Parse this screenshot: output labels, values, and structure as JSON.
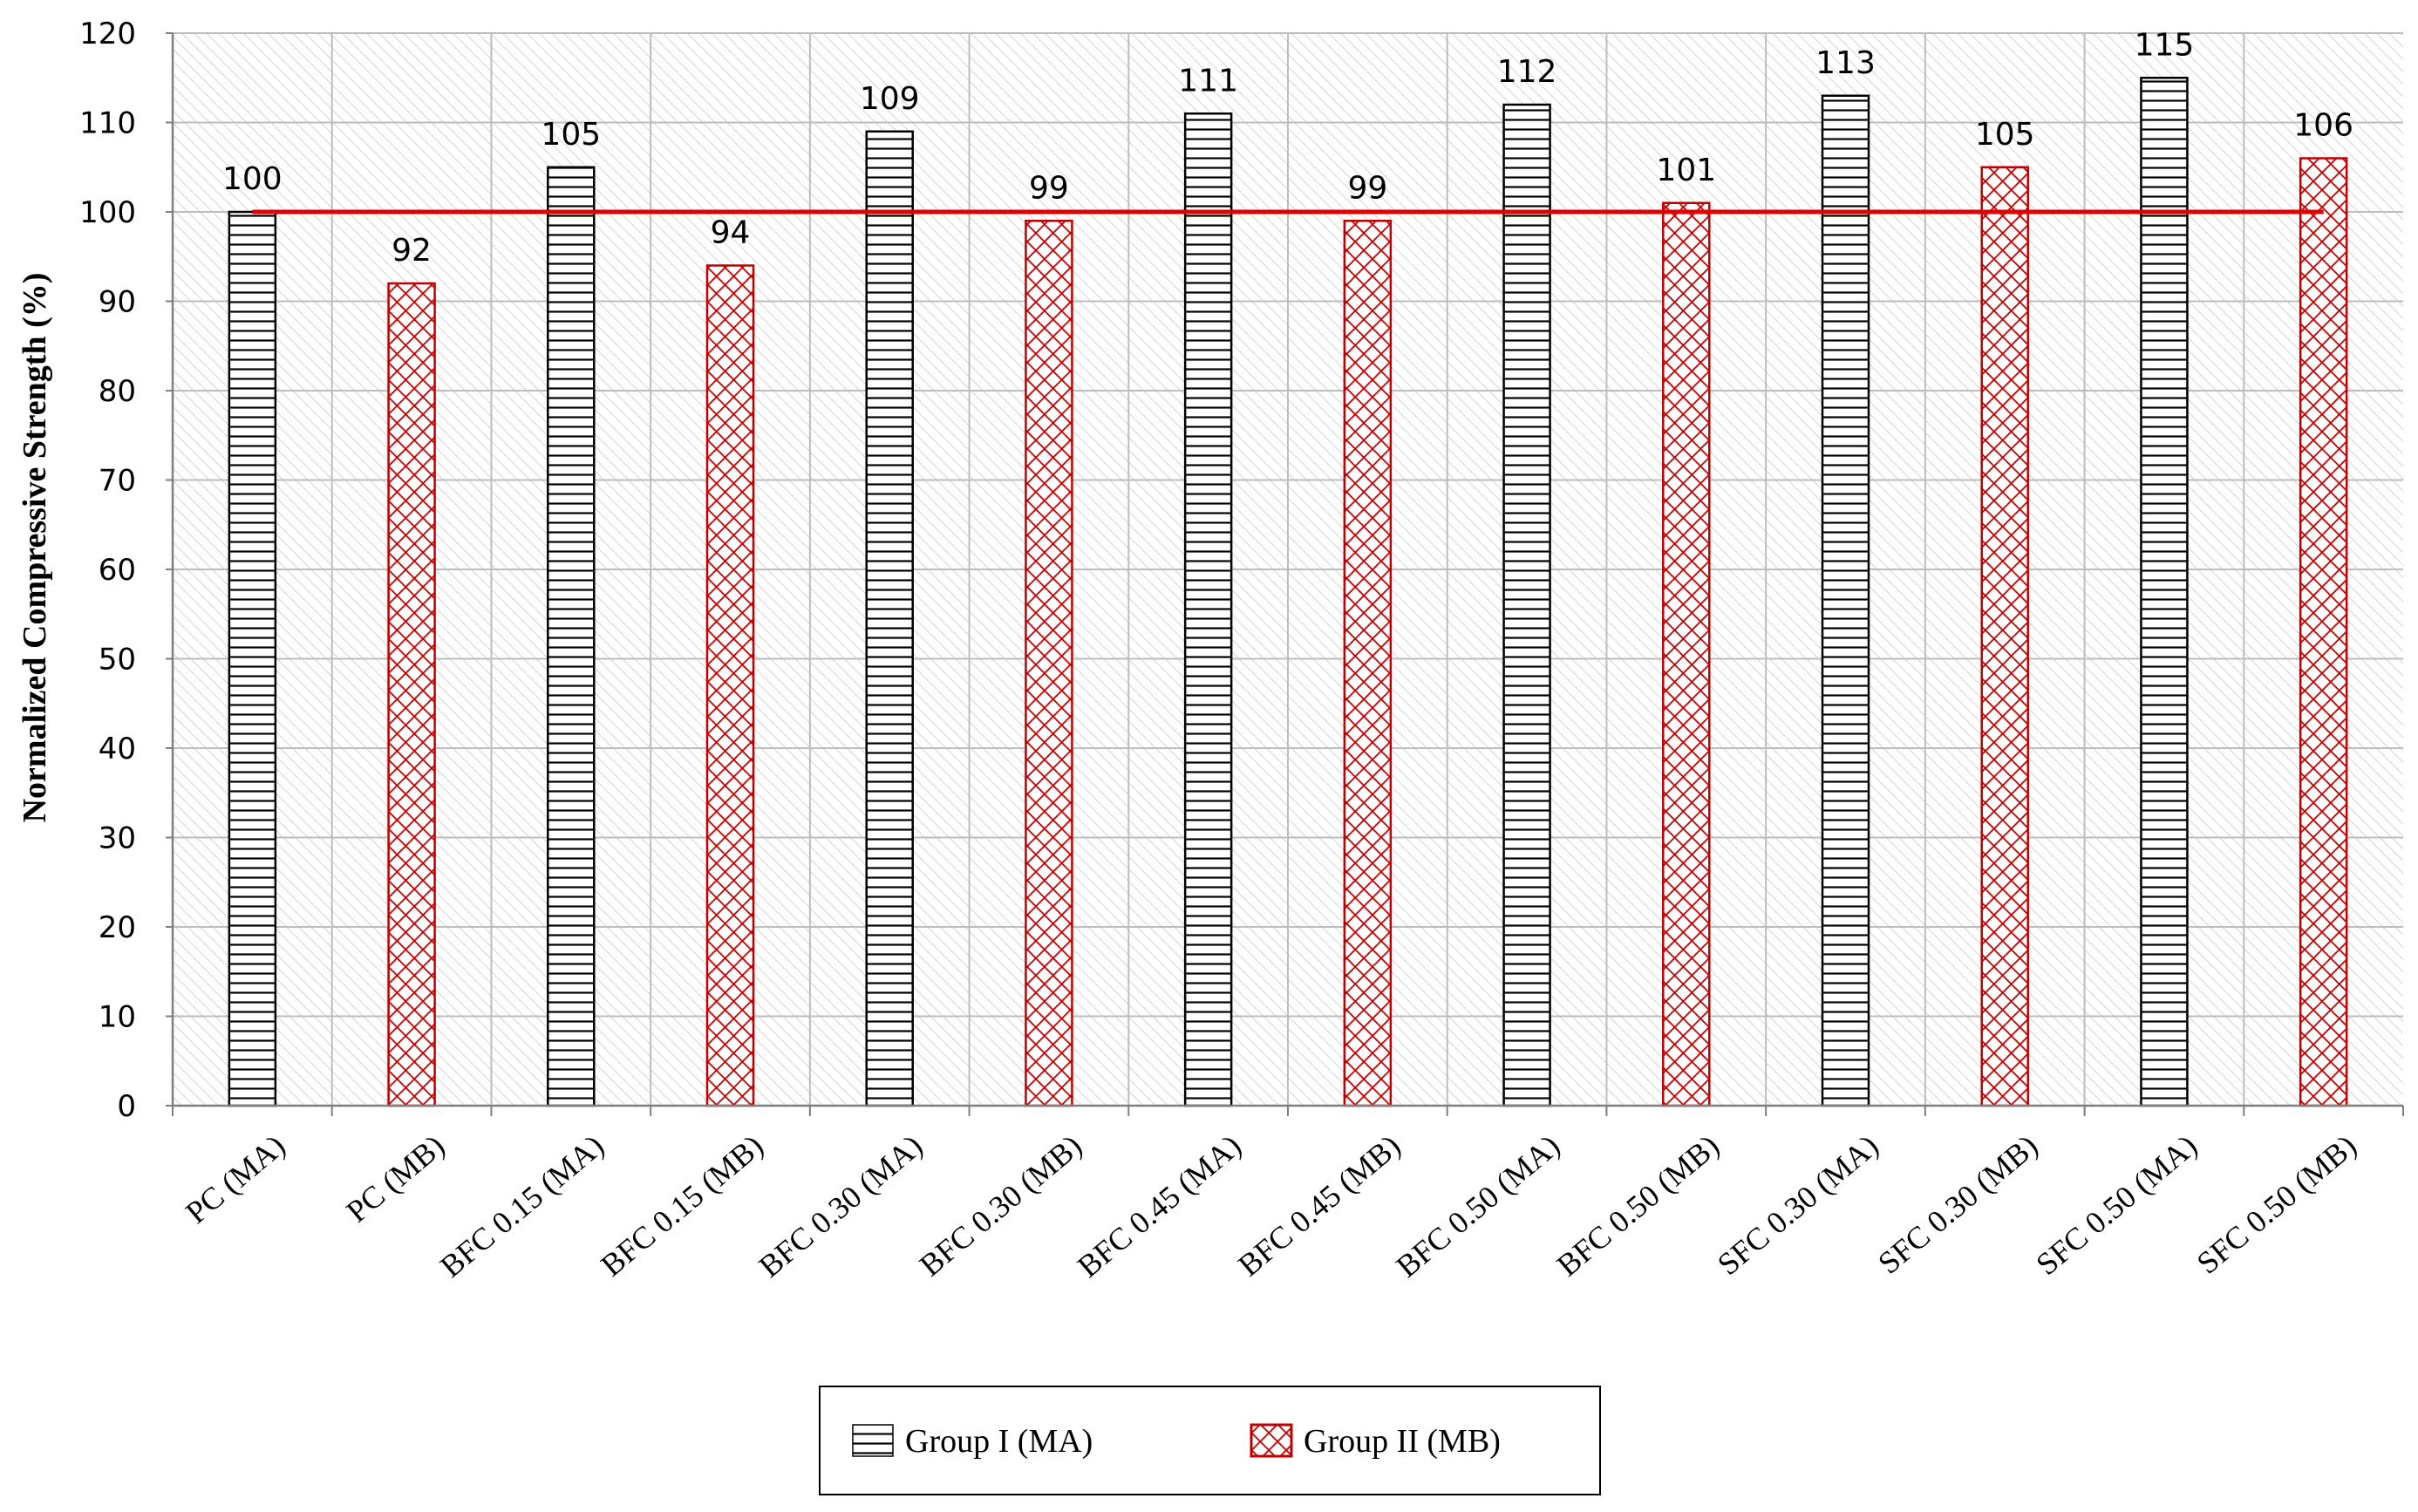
{
  "chart_data": {
    "type": "bar",
    "ylabel": "Normalized Compressive Strength (%)",
    "xlabel": "",
    "ylim": [
      0,
      120
    ],
    "ytick_step": 10,
    "grid": true,
    "legend_position": "bottom-center",
    "categories": [
      "PC (MA)",
      "PC (MB)",
      "BFC 0.15 (MA)",
      "BFC 0.15 (MB)",
      "BFC 0.30 (MA)",
      "BFC 0.30 (MB)",
      "BFC 0.45 (MA)",
      "BFC 0.45 (MB)",
      "BFC 0.50 (MA)",
      "BFC 0.50 (MB)",
      "SFC 0.30 (MA)",
      "SFC 0.30 (MB)",
      "SFC 0.50 (MA)",
      "SFC 0.50 (MB)"
    ],
    "values": [
      100,
      92,
      105,
      94,
      109,
      99,
      111,
      99,
      112,
      101,
      113,
      105,
      115,
      106
    ],
    "series_by_bar": [
      "ma",
      "mb",
      "ma",
      "mb",
      "ma",
      "mb",
      "ma",
      "mb",
      "ma",
      "mb",
      "ma",
      "mb",
      "ma",
      "mb"
    ],
    "series": [
      {
        "key": "ma",
        "name": "Group I (MA)",
        "pattern": "horizontal-lines",
        "color": "#000000"
      },
      {
        "key": "mb",
        "name": "Group II (MB)",
        "pattern": "crosshatch",
        "color": "#c00000"
      }
    ],
    "reference_line": {
      "value": 100,
      "color": "#e00000"
    },
    "colors": {
      "plot_background_hatch": "#d4d4d4",
      "grid": "#bdbdbd",
      "axis": "#7f7f7f"
    }
  }
}
